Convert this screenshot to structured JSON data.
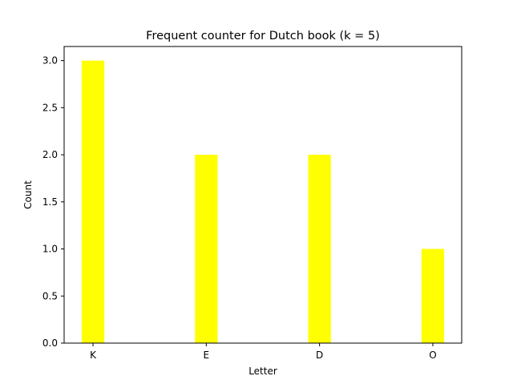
{
  "chart_data": {
    "type": "bar",
    "title": "Frequent counter for Dutch book (k = 5)",
    "xlabel": "Letter",
    "ylabel": "Count",
    "categories": [
      "K",
      "E",
      "D",
      "O"
    ],
    "values": [
      3,
      2,
      2,
      1
    ],
    "ylim": [
      0,
      3.15
    ],
    "yticks": [
      "0.0",
      "0.5",
      "1.0",
      "1.5",
      "2.0",
      "2.5",
      "3.0"
    ],
    "bar_color": "#ffff00",
    "grid": false,
    "legend": "none"
  }
}
